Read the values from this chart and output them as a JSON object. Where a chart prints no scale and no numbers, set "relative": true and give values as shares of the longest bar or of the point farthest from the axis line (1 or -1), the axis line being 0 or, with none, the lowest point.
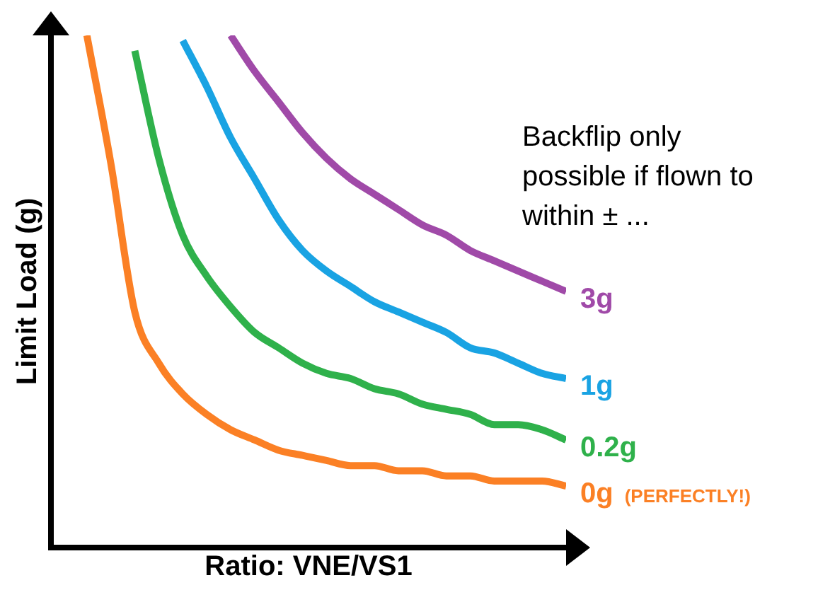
{
  "chart_data": {
    "type": "line",
    "relative": true,
    "grid": false,
    "legend": false,
    "marker": "none",
    "xlabel": "Ratio: VNE/VS1",
    "ylabel": "Limit Load (g)",
    "categories": [
      null,
      null,
      null,
      null,
      null,
      null,
      null,
      null,
      null,
      null,
      null,
      null,
      null,
      null,
      null,
      null,
      null,
      null,
      null,
      null,
      null
    ],
    "series": [
      {
        "name": "3g",
        "color": "#a04aa8",
        "values": [
          null,
          null,
          null,
          null,
          null,
          null,
          1.0,
          0.93,
          0.87,
          0.81,
          0.76,
          0.72,
          0.69,
          0.66,
          0.63,
          0.61,
          0.58,
          0.56,
          0.54,
          0.52,
          0.5
        ]
      },
      {
        "name": "1g",
        "color": "#19a3e3",
        "values": [
          null,
          null,
          null,
          null,
          0.99,
          0.9,
          0.8,
          0.72,
          0.64,
          0.58,
          0.54,
          0.51,
          0.48,
          0.46,
          0.44,
          0.42,
          0.39,
          0.38,
          0.36,
          0.34,
          0.33
        ]
      },
      {
        "name": "0.2g",
        "color": "#2fb14b",
        "values": [
          null,
          null,
          0.97,
          0.76,
          0.61,
          0.53,
          0.47,
          0.42,
          0.39,
          0.36,
          0.34,
          0.33,
          0.31,
          0.3,
          0.28,
          0.27,
          0.26,
          0.24,
          0.24,
          0.23,
          0.21
        ]
      },
      {
        "name": "0g",
        "color": "#fb8025",
        "values": [
          1.0,
          0.75,
          0.46,
          0.36,
          0.3,
          0.26,
          0.23,
          0.21,
          0.19,
          0.18,
          0.17,
          0.16,
          0.16,
          0.15,
          0.15,
          0.14,
          0.14,
          0.13,
          0.13,
          0.13,
          0.12
        ]
      }
    ],
    "annotations": [
      "Backflip only possible if flown to within ± ...",
      "(PERFECTLY!)"
    ]
  }
}
